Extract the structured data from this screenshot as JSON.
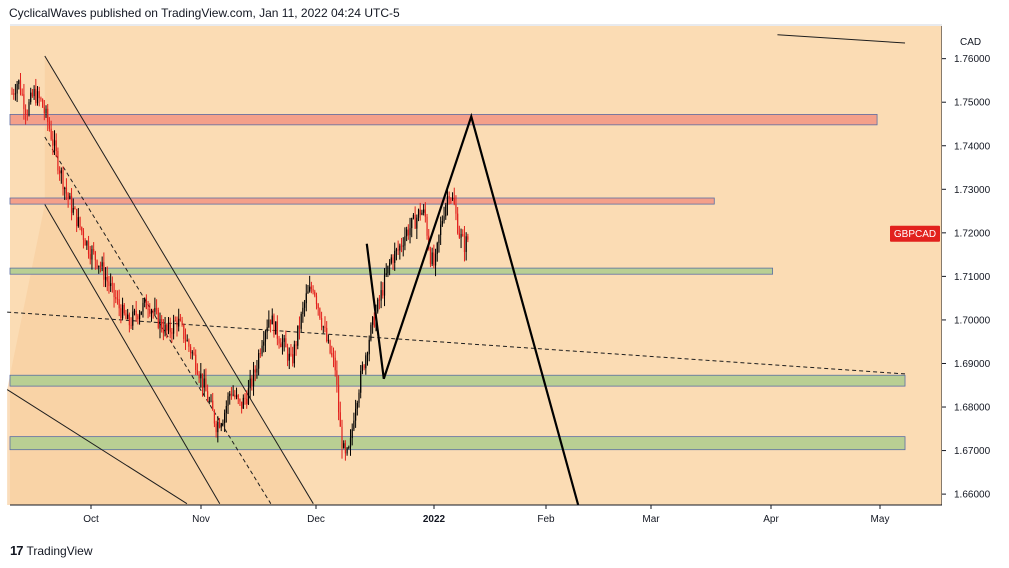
{
  "header": {
    "publish_text": "CyclicalWaves published on TradingView.com, Jan 11, 2022 04:24 UTC-5"
  },
  "footer": {
    "logo_glyph": "17",
    "brand": "TradingView"
  },
  "colors": {
    "background": "#fbdcb4",
    "background_left": "#f8cfa0",
    "candle_up": "#000000",
    "candle_down": "#e2211d",
    "resistance_zone": "#f4a08a",
    "support_zone": "#b9cf93",
    "zone_border": "#5b6ea3",
    "projection": "#000000",
    "price_tag": "#e2211d"
  },
  "chart_data": {
    "type": "candlestick",
    "symbol": "GBPCAD",
    "currency_label": "CAD",
    "y_range": [
      1.6575,
      1.7675
    ],
    "y_ticks": [
      "1.76000",
      "1.75000",
      "1.74000",
      "1.73000",
      "1.72000",
      "1.71000",
      "1.70000",
      "1.69000",
      "1.68000",
      "1.67000",
      "1.66000"
    ],
    "x_ticks": [
      {
        "label": "Oct",
        "bold": false
      },
      {
        "label": "Nov",
        "bold": false
      },
      {
        "label": "Dec",
        "bold": false
      },
      {
        "label": "2022",
        "bold": true
      },
      {
        "label": "Feb",
        "bold": false
      },
      {
        "label": "Mar",
        "bold": false
      },
      {
        "label": "Apr",
        "bold": false
      },
      {
        "label": "May",
        "bold": false
      }
    ],
    "last_price_label": "GBPCAD",
    "last_price": 1.7198,
    "price_path": [
      [
        0,
        1.752
      ],
      [
        5,
        1.755
      ],
      [
        12,
        1.748
      ],
      [
        18,
        1.752
      ],
      [
        24,
        1.75
      ],
      [
        30,
        1.745
      ],
      [
        38,
        1.736
      ],
      [
        46,
        1.728
      ],
      [
        55,
        1.722
      ],
      [
        64,
        1.716
      ],
      [
        72,
        1.713
      ],
      [
        80,
        1.708
      ],
      [
        88,
        1.703
      ],
      [
        96,
        1.699
      ],
      [
        104,
        1.702
      ],
      [
        112,
        1.704
      ],
      [
        120,
        1.7
      ],
      [
        128,
        1.697
      ],
      [
        136,
        1.7
      ],
      [
        144,
        1.695
      ],
      [
        152,
        1.69
      ],
      [
        160,
        1.683
      ],
      [
        168,
        1.676
      ],
      [
        174,
        1.678
      ],
      [
        180,
        1.684
      ],
      [
        188,
        1.68
      ],
      [
        194,
        1.683
      ],
      [
        200,
        1.688
      ],
      [
        206,
        1.696
      ],
      [
        212,
        1.701
      ],
      [
        218,
        1.697
      ],
      [
        224,
        1.694
      ],
      [
        230,
        1.69
      ],
      [
        236,
        1.698
      ],
      [
        242,
        1.705
      ],
      [
        248,
        1.708
      ],
      [
        254,
        1.701
      ],
      [
        260,
        1.694
      ],
      [
        266,
        1.689
      ],
      [
        270,
        1.675
      ],
      [
        274,
        1.668
      ],
      [
        278,
        1.67
      ],
      [
        282,
        1.68
      ],
      [
        288,
        1.688
      ],
      [
        294,
        1.696
      ],
      [
        300,
        1.702
      ],
      [
        306,
        1.708
      ],
      [
        312,
        1.714
      ],
      [
        318,
        1.716
      ],
      [
        324,
        1.72
      ],
      [
        330,
        1.722
      ],
      [
        336,
        1.725
      ],
      [
        340,
        1.724
      ],
      [
        344,
        1.715
      ],
      [
        348,
        1.712
      ],
      [
        352,
        1.72
      ],
      [
        356,
        1.726
      ],
      [
        360,
        1.73
      ],
      [
        364,
        1.726
      ],
      [
        368,
        1.72
      ],
      [
        372,
        1.717
      ],
      [
        376,
        1.719
      ]
    ],
    "resistance_zones": [
      {
        "low": 1.7448,
        "high": 1.7472,
        "x_start_day": -4,
        "x_end_day": 712
      },
      {
        "low": 1.7266,
        "high": 1.728,
        "x_start_day": -4,
        "x_end_day": 578
      }
    ],
    "support_zones": [
      {
        "low": 1.7105,
        "high": 1.7119,
        "x_start_day": -4,
        "x_end_day": 626
      },
      {
        "low": 1.6848,
        "high": 1.6873,
        "x_start_day": -4,
        "x_end_day": 735
      },
      {
        "low": 1.6702,
        "high": 1.6732,
        "x_start_day": -4,
        "x_end_day": 735
      }
    ],
    "projection_path": [
      [
        292,
        1.7175
      ],
      [
        306,
        1.6865
      ],
      [
        378,
        1.7467
      ],
      [
        466,
        1.6575
      ]
    ],
    "channel_lines": [
      {
        "style": "solid",
        "points": [
          [
            27,
            1.7606
          ],
          [
            248,
            1.6578
          ]
        ]
      },
      {
        "style": "dashed",
        "points": [
          [
            27,
            1.742
          ],
          [
            213,
            1.6578
          ]
        ]
      },
      {
        "style": "solid",
        "points": [
          [
            27,
            1.7265
          ],
          [
            171,
            1.6578
          ]
        ]
      },
      {
        "style": "dashed",
        "points": [
          [
            -4,
            1.7018
          ],
          [
            735,
            1.6876
          ]
        ]
      },
      {
        "style": "solid",
        "points": [
          [
            -4,
            1.684
          ],
          [
            144,
            1.6578
          ]
        ]
      },
      {
        "style": "solid",
        "points": [
          [
            630,
            1.7655
          ],
          [
            735,
            1.7636
          ]
        ]
      }
    ]
  }
}
